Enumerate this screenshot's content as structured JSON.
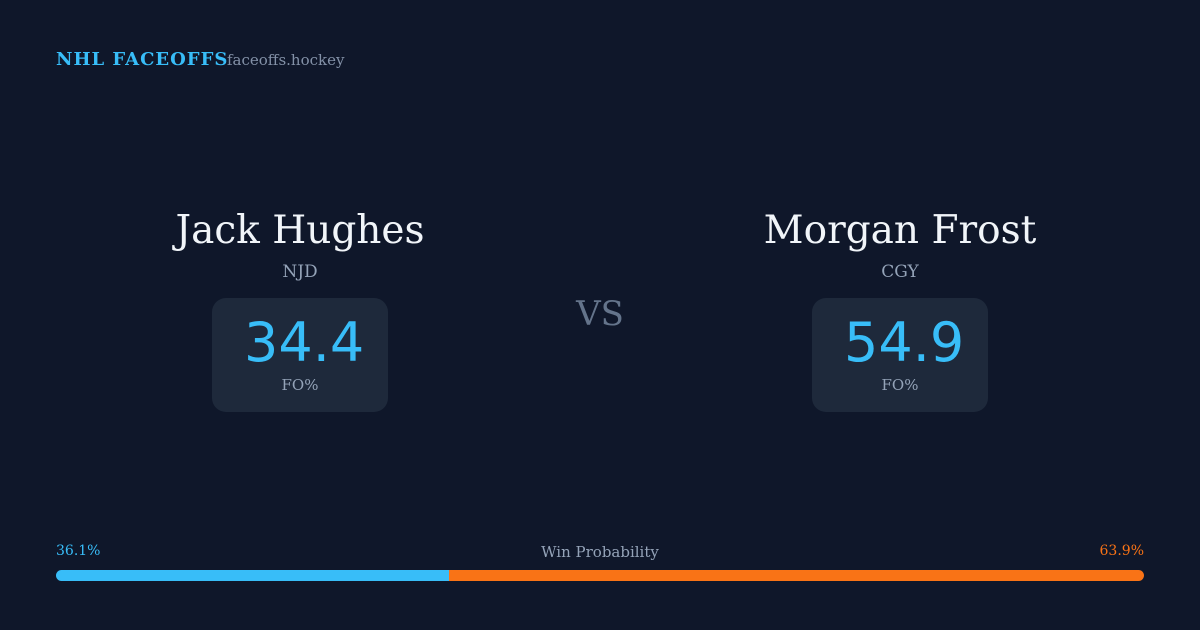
{
  "header": {
    "brand": "NHL FACEOFFS",
    "site": "faceoffs.hockey"
  },
  "players": [
    {
      "name": "Jack Hughes",
      "team": "NJD",
      "fo_pct": 34.4,
      "fo_label": "FO%"
    },
    {
      "name": "Morgan Frost",
      "team": "CGY",
      "fo_pct": 54.9,
      "fo_label": "FO%"
    }
  ],
  "vs": "VS",
  "win_probability": {
    "label": "Win Probability",
    "values": [
      36.1,
      63.9
    ],
    "value_labels": [
      "36.1%",
      "63.9%"
    ],
    "colors": [
      "#38bdf8",
      "#f97316"
    ]
  }
}
